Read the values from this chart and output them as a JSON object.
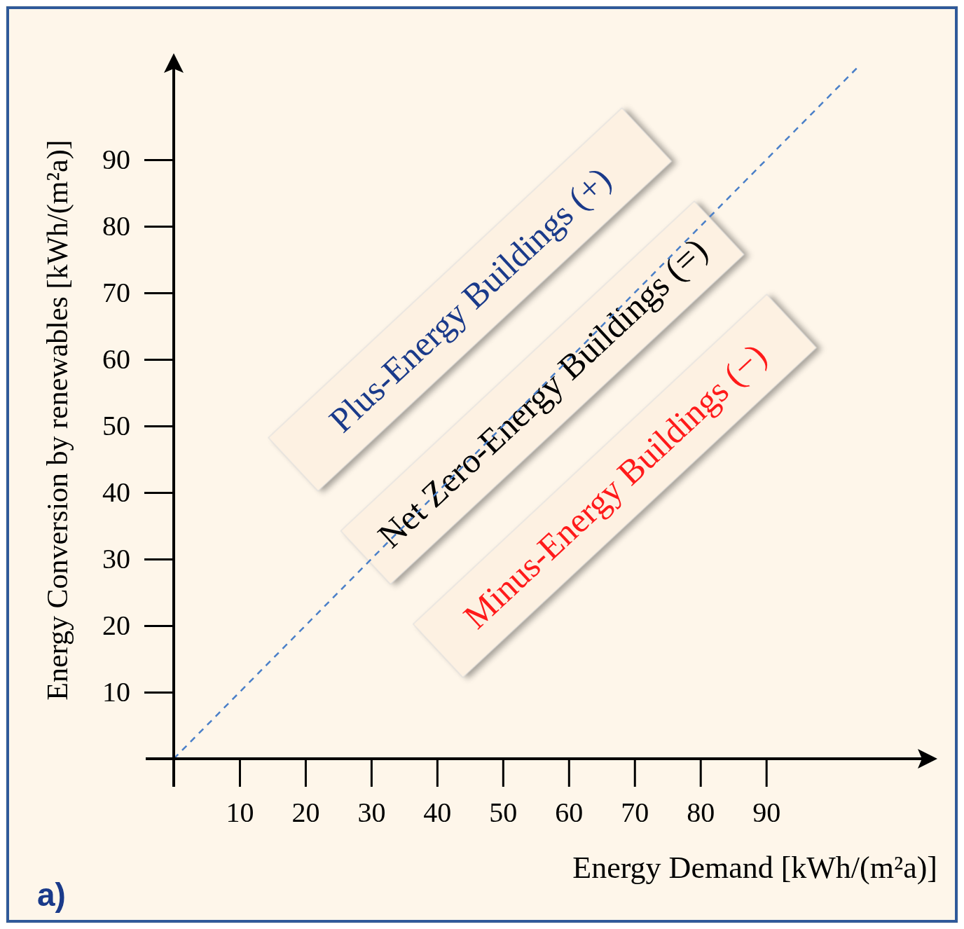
{
  "chart_data": {
    "type": "line",
    "xlabel": "Energy Demand [kWh/(m²a)]",
    "ylabel": "Energy Conversion by renewables [kWh/(m²a)]",
    "xlim": [
      0,
      116
    ],
    "ylim": [
      0,
      106
    ],
    "xticks": [
      10,
      20,
      30,
      40,
      50,
      60,
      70,
      80,
      90
    ],
    "yticks": [
      10,
      20,
      30,
      40,
      50,
      60,
      70,
      80,
      90
    ],
    "grid": false,
    "marker": "none",
    "line_style": "dashed",
    "series": [
      {
        "color": "#4a7fc8",
        "x": [
          0,
          104
        ],
        "values": [
          0,
          104
        ]
      }
    ],
    "annotations": [
      "Plus-Energy Buildings (+)",
      "Net Zero-Energy Buildings (=)",
      "Minus-Energy Buildings (−)",
      "a)"
    ]
  }
}
